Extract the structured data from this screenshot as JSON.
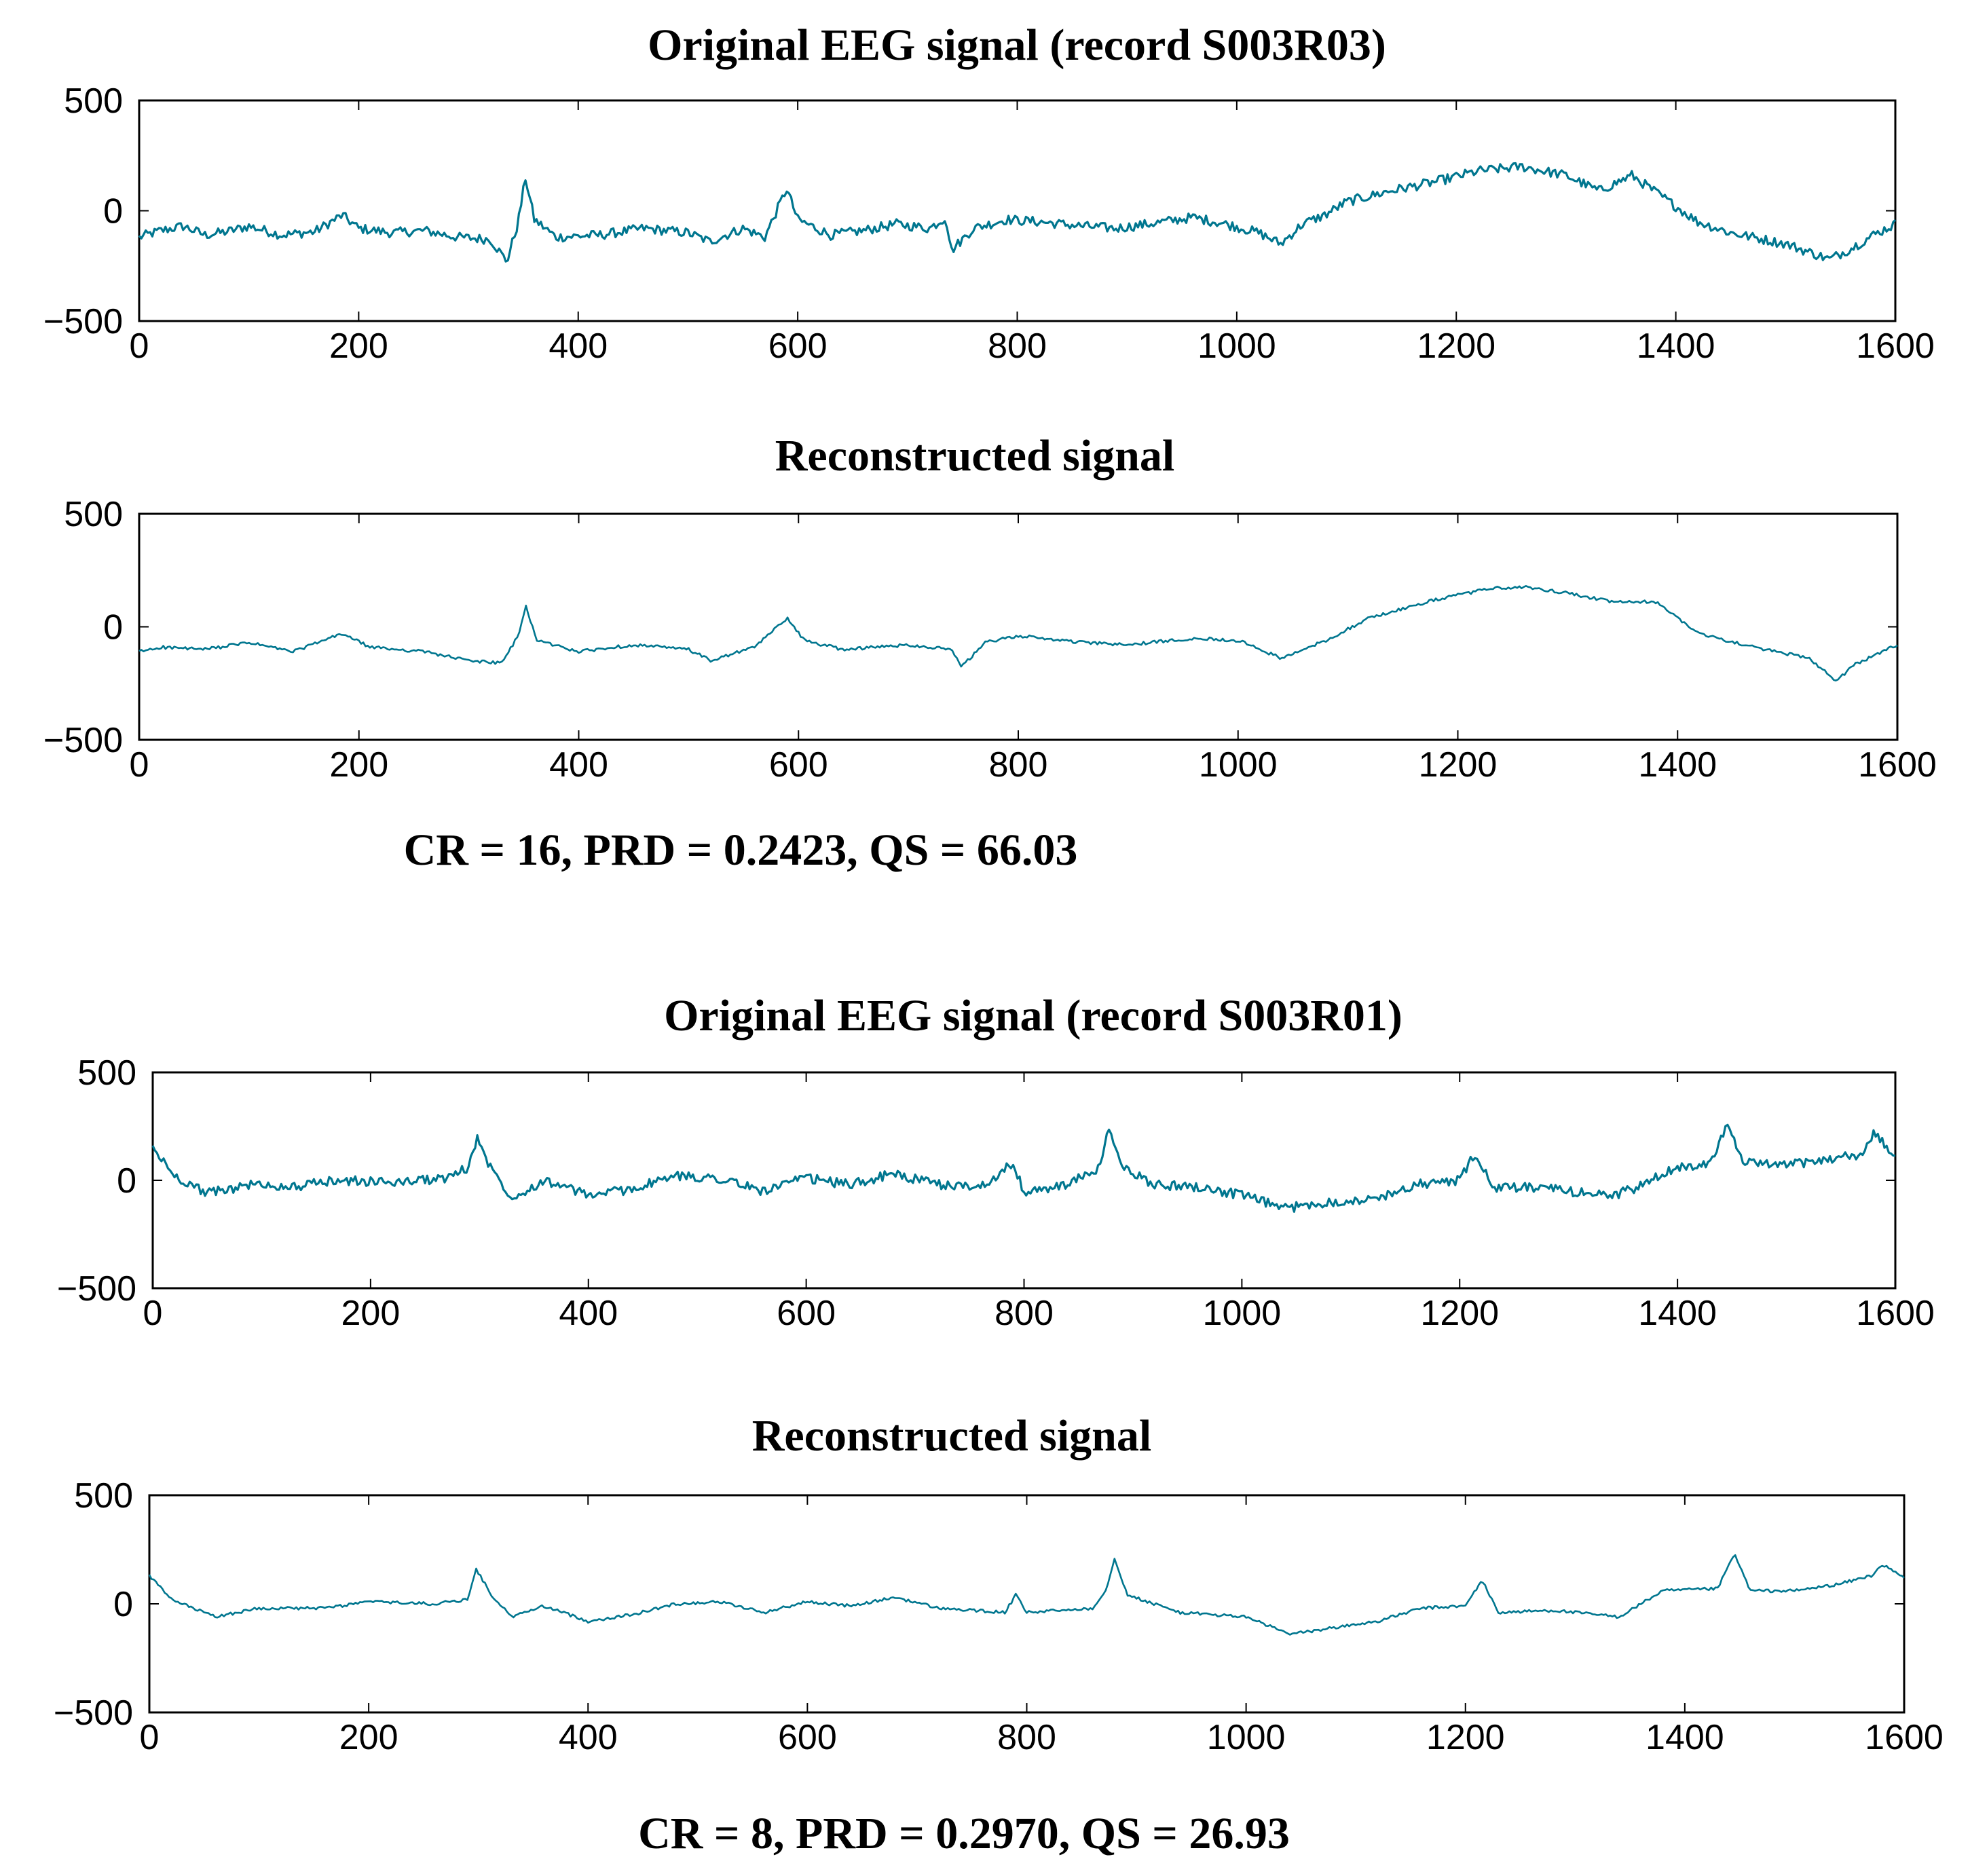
{
  "figure": {
    "line_color": "#00768f",
    "metrics": [
      "CR = 16, PRD = 0.2423, QS = 66.03",
      "CR = 8, PRD = 0.2970, QS = 26.93"
    ]
  },
  "chart_data": [
    {
      "type": "line",
      "title": "Original EEG signal (record S003R03)",
      "xlim": [
        0,
        1600
      ],
      "ylim": [
        -500,
        500
      ],
      "xticks": [
        0,
        200,
        400,
        600,
        800,
        1000,
        1200,
        1400,
        1600
      ],
      "yticks": [
        500,
        0,
        -500
      ],
      "xtick_labels": [
        "0",
        "200",
        "400",
        "600",
        "800",
        "1000",
        "1200",
        "1400",
        "1600"
      ],
      "ytick_labels": [
        "500",
        "0",
        "−500"
      ],
      "noise": 22,
      "series": [
        {
          "name": "original",
          "points": [
            [
              0,
              -120
            ],
            [
              20,
              -90
            ],
            [
              40,
              -70
            ],
            [
              60,
              -110
            ],
            [
              80,
              -95
            ],
            [
              100,
              -70
            ],
            [
              130,
              -110
            ],
            [
              160,
              -95
            ],
            [
              185,
              -20
            ],
            [
              200,
              -80
            ],
            [
              230,
              -100
            ],
            [
              260,
              -90
            ],
            [
              290,
              -120
            ],
            [
              320,
              -130
            ],
            [
              335,
              -230
            ],
            [
              345,
              -60
            ],
            [
              352,
              150
            ],
            [
              360,
              -40
            ],
            [
              380,
              -120
            ],
            [
              420,
              -110
            ],
            [
              460,
              -80
            ],
            [
              500,
              -100
            ],
            [
              520,
              -140
            ],
            [
              550,
              -80
            ],
            [
              570,
              -120
            ],
            [
              590,
              100
            ],
            [
              600,
              -40
            ],
            [
              630,
              -110
            ],
            [
              660,
              -90
            ],
            [
              690,
              -60
            ],
            [
              720,
              -80
            ],
            [
              735,
              -30
            ],
            [
              740,
              -180
            ],
            [
              760,
              -80
            ],
            [
              790,
              -40
            ],
            [
              820,
              -50
            ],
            [
              860,
              -70
            ],
            [
              890,
              -80
            ],
            [
              920,
              -60
            ],
            [
              960,
              -30
            ],
            [
              990,
              -60
            ],
            [
              1020,
              -100
            ],
            [
              1040,
              -150
            ],
            [
              1060,
              -60
            ],
            [
              1080,
              -20
            ],
            [
              1100,
              40
            ],
            [
              1140,
              90
            ],
            [
              1180,
              130
            ],
            [
              1220,
              180
            ],
            [
              1260,
              200
            ],
            [
              1280,
              180
            ],
            [
              1300,
              160
            ],
            [
              1330,
              90
            ],
            [
              1360,
              160
            ],
            [
              1380,
              90
            ],
            [
              1420,
              -50
            ],
            [
              1450,
              -100
            ],
            [
              1500,
              -150
            ],
            [
              1540,
              -220
            ],
            [
              1560,
              -170
            ],
            [
              1580,
              -110
            ],
            [
              1600,
              -60
            ]
          ]
        }
      ]
    },
    {
      "type": "line",
      "title": "Reconstructed signal",
      "xlim": [
        0,
        1600
      ],
      "ylim": [
        -500,
        500
      ],
      "xticks": [
        0,
        200,
        400,
        600,
        800,
        1000,
        1200,
        1400,
        1600
      ],
      "yticks": [
        500,
        0,
        -500
      ],
      "xtick_labels": [
        "0",
        "200",
        "400",
        "600",
        "800",
        "1000",
        "1200",
        "1400",
        "1600"
      ],
      "ytick_labels": [
        "500",
        "0",
        "−500"
      ],
      "noise": 7,
      "series": [
        {
          "name": "reconstructed",
          "points": [
            [
              0,
              -110
            ],
            [
              20,
              -90
            ],
            [
              60,
              -100
            ],
            [
              100,
              -70
            ],
            [
              140,
              -110
            ],
            [
              185,
              -30
            ],
            [
              210,
              -90
            ],
            [
              260,
              -110
            ],
            [
              300,
              -150
            ],
            [
              330,
              -160
            ],
            [
              345,
              -40
            ],
            [
              352,
              90
            ],
            [
              362,
              -60
            ],
            [
              400,
              -110
            ],
            [
              450,
              -80
            ],
            [
              500,
              -100
            ],
            [
              520,
              -150
            ],
            [
              560,
              -90
            ],
            [
              590,
              40
            ],
            [
              605,
              -60
            ],
            [
              640,
              -100
            ],
            [
              700,
              -80
            ],
            [
              740,
              -100
            ],
            [
              748,
              -180
            ],
            [
              770,
              -70
            ],
            [
              800,
              -40
            ],
            [
              860,
              -70
            ],
            [
              900,
              -80
            ],
            [
              960,
              -50
            ],
            [
              1000,
              -60
            ],
            [
              1040,
              -140
            ],
            [
              1080,
              -60
            ],
            [
              1120,
              40
            ],
            [
              1180,
              120
            ],
            [
              1230,
              170
            ],
            [
              1260,
              175
            ],
            [
              1300,
              150
            ],
            [
              1340,
              110
            ],
            [
              1380,
              110
            ],
            [
              1420,
              -30
            ],
            [
              1460,
              -80
            ],
            [
              1520,
              -140
            ],
            [
              1545,
              -240
            ],
            [
              1560,
              -170
            ],
            [
              1600,
              -80
            ]
          ]
        }
      ]
    },
    {
      "type": "line",
      "title": "Original EEG signal (record S003R01)",
      "xlim": [
        0,
        1600
      ],
      "ylim": [
        -500,
        500
      ],
      "xticks": [
        0,
        200,
        400,
        600,
        800,
        1000,
        1200,
        1400,
        1600
      ],
      "yticks": [
        500,
        0,
        -500
      ],
      "xtick_labels": [
        "0",
        "200",
        "400",
        "600",
        "800",
        "1000",
        "1200",
        "1400",
        "1600"
      ],
      "ytick_labels": [
        "500",
        "0",
        "−500"
      ],
      "noise": 22,
      "series": [
        {
          "name": "original",
          "points": [
            [
              0,
              150
            ],
            [
              20,
              20
            ],
            [
              50,
              -60
            ],
            [
              90,
              -20
            ],
            [
              130,
              -30
            ],
            [
              170,
              0
            ],
            [
              220,
              -10
            ],
            [
              270,
              10
            ],
            [
              290,
              60
            ],
            [
              298,
              200
            ],
            [
              310,
              60
            ],
            [
              330,
              -80
            ],
            [
              360,
              0
            ],
            [
              400,
              -70
            ],
            [
              440,
              -40
            ],
            [
              480,
              20
            ],
            [
              520,
              10
            ],
            [
              560,
              -50
            ],
            [
              600,
              10
            ],
            [
              640,
              -20
            ],
            [
              680,
              30
            ],
            [
              720,
              -20
            ],
            [
              760,
              -30
            ],
            [
              790,
              80
            ],
            [
              800,
              -60
            ],
            [
              840,
              -20
            ],
            [
              870,
              60
            ],
            [
              878,
              240
            ],
            [
              890,
              60
            ],
            [
              920,
              -20
            ],
            [
              960,
              -30
            ],
            [
              1000,
              -70
            ],
            [
              1040,
              -130
            ],
            [
              1080,
              -100
            ],
            [
              1120,
              -90
            ],
            [
              1160,
              -20
            ],
            [
              1200,
              0
            ],
            [
              1215,
              130
            ],
            [
              1230,
              -40
            ],
            [
              1260,
              -30
            ],
            [
              1300,
              -50
            ],
            [
              1340,
              -70
            ],
            [
              1360,
              -40
            ],
            [
              1400,
              60
            ],
            [
              1430,
              80
            ],
            [
              1445,
              260
            ],
            [
              1460,
              80
            ],
            [
              1500,
              70
            ],
            [
              1540,
              100
            ],
            [
              1570,
              120
            ],
            [
              1580,
              220
            ],
            [
              1600,
              110
            ]
          ]
        }
      ]
    },
    {
      "type": "line",
      "title": "Reconstructed signal",
      "xlim": [
        0,
        1600
      ],
      "ylim": [
        -500,
        500
      ],
      "xticks": [
        0,
        200,
        400,
        600,
        800,
        1000,
        1200,
        1400,
        1600
      ],
      "yticks": [
        500,
        0,
        -500
      ],
      "xtick_labels": [
        "0",
        "200",
        "400",
        "600",
        "800",
        "1000",
        "1200",
        "1400",
        "1600"
      ],
      "ytick_labels": [
        "500",
        "0",
        "−500"
      ],
      "noise": 7,
      "series": [
        {
          "name": "reconstructed",
          "points": [
            [
              0,
              130
            ],
            [
              20,
              20
            ],
            [
              60,
              -60
            ],
            [
              100,
              -20
            ],
            [
              160,
              -20
            ],
            [
              200,
              10
            ],
            [
              260,
              0
            ],
            [
              290,
              20
            ],
            [
              298,
              160
            ],
            [
              312,
              40
            ],
            [
              330,
              -60
            ],
            [
              360,
              -10
            ],
            [
              400,
              -80
            ],
            [
              440,
              -50
            ],
            [
              480,
              0
            ],
            [
              520,
              10
            ],
            [
              560,
              -40
            ],
            [
              600,
              10
            ],
            [
              640,
              -10
            ],
            [
              680,
              30
            ],
            [
              720,
              -20
            ],
            [
              780,
              -40
            ],
            [
              790,
              40
            ],
            [
              800,
              -40
            ],
            [
              860,
              -20
            ],
            [
              872,
              60
            ],
            [
              880,
              210
            ],
            [
              892,
              40
            ],
            [
              940,
              -40
            ],
            [
              1000,
              -60
            ],
            [
              1040,
              -140
            ],
            [
              1080,
              -110
            ],
            [
              1120,
              -80
            ],
            [
              1160,
              -20
            ],
            [
              1200,
              -10
            ],
            [
              1215,
              110
            ],
            [
              1230,
              -40
            ],
            [
              1280,
              -30
            ],
            [
              1340,
              -60
            ],
            [
              1380,
              60
            ],
            [
              1430,
              70
            ],
            [
              1445,
              230
            ],
            [
              1460,
              60
            ],
            [
              1500,
              60
            ],
            [
              1540,
              90
            ],
            [
              1570,
              130
            ],
            [
              1580,
              180
            ],
            [
              1600,
              120
            ]
          ]
        }
      ]
    }
  ]
}
